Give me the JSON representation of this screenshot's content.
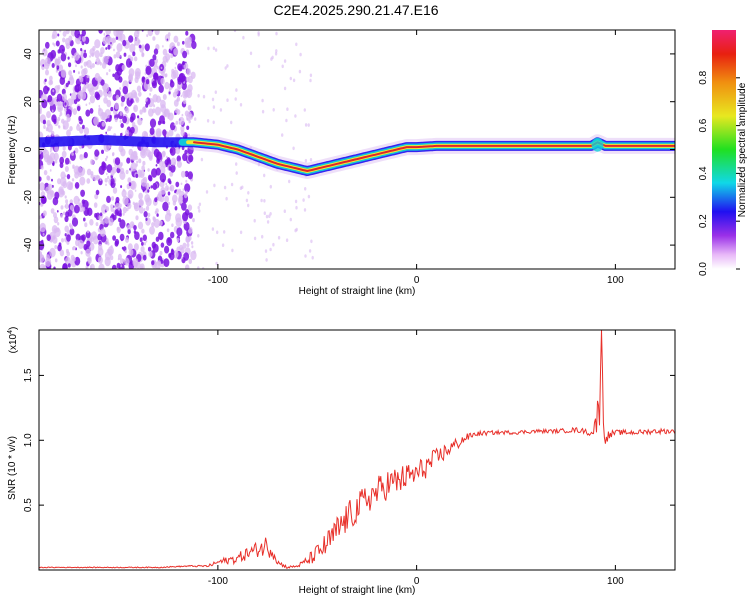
{
  "figure_title": "C2E4.2025.290.21.47.E16",
  "colors": {
    "snr_line": "#e8302a",
    "track_core": "#e0242a",
    "track_mid": "#f2e832",
    "track_outer": "#10d0d8",
    "track_edge": "#2010f0",
    "noise_dark": "#7a12e0",
    "noise_light": "#d9b8f2"
  },
  "chart_data": [
    {
      "type": "heatmap",
      "name": "spectrogram",
      "xlabel": "Height of straight line (km)",
      "ylabel": "Frequency (Hz)",
      "xlim": [
        -190,
        130
      ],
      "ylim": [
        -50,
        50
      ],
      "xticks": [
        -100,
        0,
        100
      ],
      "xtick_labels": [
        "-100",
        "0",
        "100"
      ],
      "yticks": [
        40,
        20,
        0,
        -20,
        -40
      ],
      "ytick_labels": [
        "40",
        "20",
        "0",
        "-20",
        "-40"
      ],
      "noise_region_x": [
        -190,
        -112
      ],
      "track": {
        "x": [
          -190,
          -160,
          -130,
          -112,
          -100,
          -90,
          -80,
          -70,
          -60,
          -55,
          -50,
          -45,
          -40,
          -35,
          -30,
          -25,
          -20,
          -15,
          -10,
          -5,
          0,
          10,
          20,
          40,
          60,
          80,
          88,
          91,
          95,
          100,
          110,
          120,
          130
        ],
        "y": [
          3,
          4,
          3,
          3,
          2,
          0,
          -3,
          -6,
          -8,
          -9,
          -8,
          -7,
          -6,
          -5,
          -4,
          -3,
          -2,
          -1,
          0,
          1,
          1,
          1.5,
          1.5,
          1.5,
          1.5,
          1.5,
          1.5,
          3,
          1.5,
          1.5,
          1.5,
          1.5,
          1.5
        ]
      },
      "colorbar": {
        "label": "Normalized spectral amplitude",
        "range": [
          0,
          1
        ],
        "ticks": [
          0.0,
          0.2,
          0.4,
          0.6,
          0.8
        ],
        "tick_labels": [
          "0.0",
          "0.2",
          "0.4",
          "0.6",
          "0.8"
        ]
      }
    },
    {
      "type": "line",
      "name": "snr",
      "xlabel": "Height of straight line (km)",
      "ylabel": "SNR (10 * v/v)",
      "yscale_label": "(x10",
      "yscale_exponent": "4",
      "xlim": [
        -190,
        130
      ],
      "ylim": [
        0,
        1.85
      ],
      "xticks": [
        -100,
        0,
        100
      ],
      "xtick_labels": [
        "-100",
        "0",
        "100"
      ],
      "yticks": [
        0.5,
        1.0,
        1.5
      ],
      "ytick_labels": [
        "0.5",
        "1.0",
        "1.5"
      ],
      "x": [
        -190,
        -160,
        -130,
        -115,
        -105,
        -100,
        -90,
        -85,
        -80,
        -75,
        -72,
        -70,
        -65,
        -60,
        -55,
        -50,
        -45,
        -40,
        -35,
        -30,
        -25,
        -20,
        -15,
        -10,
        -5,
        0,
        5,
        10,
        15,
        20,
        25,
        30,
        40,
        50,
        60,
        70,
        80,
        85,
        88,
        90,
        91,
        92,
        93,
        94,
        96,
        100,
        110,
        120,
        130
      ],
      "y": [
        0.02,
        0.02,
        0.02,
        0.03,
        0.03,
        0.06,
        0.09,
        0.13,
        0.16,
        0.19,
        0.14,
        0.06,
        0.02,
        0.03,
        0.07,
        0.13,
        0.2,
        0.3,
        0.4,
        0.47,
        0.55,
        0.6,
        0.66,
        0.68,
        0.72,
        0.74,
        0.8,
        0.86,
        0.92,
        0.97,
        1.02,
        1.05,
        1.06,
        1.06,
        1.07,
        1.07,
        1.08,
        1.07,
        1.05,
        1.12,
        1.2,
        1.35,
        1.85,
        1.1,
        1.03,
        1.06,
        1.06,
        1.07,
        1.07
      ],
      "noise_amplitude": [
        0.003,
        0.003,
        0.004,
        0.005,
        0.008,
        0.02,
        0.04,
        0.05,
        0.06,
        0.09,
        0.06,
        0.02,
        0.01,
        0.01,
        0.04,
        0.07,
        0.1,
        0.12,
        0.12,
        0.12,
        0.12,
        0.12,
        0.12,
        0.12,
        0.1,
        0.1,
        0.09,
        0.08,
        0.06,
        0.05,
        0.03,
        0.02,
        0.015,
        0.015,
        0.015,
        0.015,
        0.02,
        0.02,
        0.03,
        0.06,
        0.15,
        0.25,
        0.0,
        0.15,
        0.04,
        0.02,
        0.02,
        0.02,
        0.02
      ]
    }
  ]
}
